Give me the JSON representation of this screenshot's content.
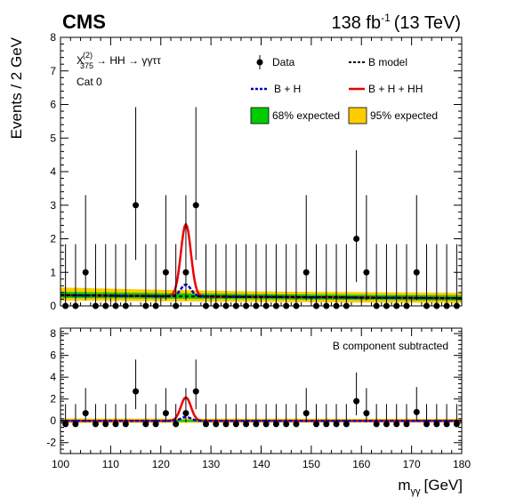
{
  "header": {
    "experiment": "CMS",
    "luminosity": "138 fb",
    "lumi_exponent": "-1",
    "energy": "(13 TeV)"
  },
  "annotations": {
    "process_main": "X",
    "process_sup": "(2)",
    "process_sub": "375",
    "process_rest": "→ HH → γγττ",
    "category": "Cat 0",
    "subtracted_label": "B component subtracted"
  },
  "legend": {
    "data": "Data",
    "b_model": "B model",
    "b_plus_h": "B + H",
    "b_plus_h_plus_hh": "B + H + HH",
    "band68": "68% expected",
    "band95": "95% expected"
  },
  "colors": {
    "data": "#000000",
    "b_model": "#000000",
    "b_plus_h": "#0000cc",
    "b_plus_h_plus_hh": "#ee0000",
    "band68": "#00cc00",
    "band95": "#ffcc00"
  },
  "chart_data": [
    {
      "type": "scatter",
      "panel": "main",
      "ylabel": "Events / 2 GeV",
      "xlim": [
        100,
        180
      ],
      "ylim": [
        0,
        8
      ],
      "x_ticks": [
        100,
        110,
        120,
        130,
        140,
        150,
        160,
        170,
        180
      ],
      "y_ticks": [
        0,
        1,
        2,
        3,
        4,
        5,
        6,
        7,
        8
      ],
      "data_points": [
        {
          "x": 101,
          "y": 0
        },
        {
          "x": 103,
          "y": 0
        },
        {
          "x": 105,
          "y": 1
        },
        {
          "x": 107,
          "y": 0
        },
        {
          "x": 109,
          "y": 0
        },
        {
          "x": 111,
          "y": 0
        },
        {
          "x": 113,
          "y": 0
        },
        {
          "x": 115,
          "y": 3
        },
        {
          "x": 117,
          "y": 0
        },
        {
          "x": 119,
          "y": 0
        },
        {
          "x": 121,
          "y": 1
        },
        {
          "x": 123,
          "y": 0
        },
        {
          "x": 125,
          "y": 1
        },
        {
          "x": 127,
          "y": 3
        },
        {
          "x": 129,
          "y": 0
        },
        {
          "x": 131,
          "y": 0
        },
        {
          "x": 133,
          "y": 0
        },
        {
          "x": 135,
          "y": 0
        },
        {
          "x": 137,
          "y": 0
        },
        {
          "x": 139,
          "y": 0
        },
        {
          "x": 141,
          "y": 0
        },
        {
          "x": 143,
          "y": 0
        },
        {
          "x": 145,
          "y": 0
        },
        {
          "x": 147,
          "y": 0
        },
        {
          "x": 149,
          "y": 1
        },
        {
          "x": 151,
          "y": 0
        },
        {
          "x": 153,
          "y": 0
        },
        {
          "x": 155,
          "y": 0
        },
        {
          "x": 157,
          "y": 0
        },
        {
          "x": 159,
          "y": 2
        },
        {
          "x": 161,
          "y": 1
        },
        {
          "x": 163,
          "y": 0
        },
        {
          "x": 165,
          "y": 0
        },
        {
          "x": 167,
          "y": 0
        },
        {
          "x": 169,
          "y": 0
        },
        {
          "x": 171,
          "y": 1
        },
        {
          "x": 173,
          "y": 0
        },
        {
          "x": 175,
          "y": 0
        },
        {
          "x": 177,
          "y": 0
        },
        {
          "x": 179,
          "y": 0
        }
      ],
      "b_model": {
        "x": [
          100,
          120,
          140,
          160,
          180
        ],
        "y": [
          0.32,
          0.29,
          0.27,
          0.25,
          0.23
        ]
      },
      "band68": {
        "x": [
          100,
          120,
          140,
          160,
          180
        ],
        "lo": [
          0.24,
          0.22,
          0.2,
          0.18,
          0.16
        ],
        "hi": [
          0.42,
          0.38,
          0.35,
          0.33,
          0.31
        ]
      },
      "band95": {
        "x": [
          100,
          120,
          140,
          160,
          180
        ],
        "lo": [
          0.16,
          0.14,
          0.12,
          0.1,
          0.09
        ],
        "hi": [
          0.55,
          0.48,
          0.43,
          0.41,
          0.39
        ]
      },
      "higgs_peak": {
        "mass": 125,
        "width": 1.0,
        "h_amplitude": 0.35,
        "hh_amplitude": 1.8
      }
    },
    {
      "type": "scatter",
      "panel": "ratio",
      "xlabel": "m_γγ [GeV]",
      "xlim": [
        100,
        180
      ],
      "ylim": [
        -3,
        8.5
      ],
      "x_ticks": [
        100,
        110,
        120,
        130,
        140,
        150,
        160,
        170,
        180
      ],
      "y_ticks": [
        -2,
        0,
        2,
        4,
        6,
        8
      ],
      "data_points": [
        {
          "x": 101,
          "y": -0.3
        },
        {
          "x": 103,
          "y": -0.3
        },
        {
          "x": 105,
          "y": 0.7
        },
        {
          "x": 107,
          "y": -0.3
        },
        {
          "x": 109,
          "y": -0.3
        },
        {
          "x": 111,
          "y": -0.3
        },
        {
          "x": 113,
          "y": -0.3
        },
        {
          "x": 115,
          "y": 2.7
        },
        {
          "x": 117,
          "y": -0.3
        },
        {
          "x": 119,
          "y": -0.3
        },
        {
          "x": 121,
          "y": 0.7
        },
        {
          "x": 123,
          "y": -0.3
        },
        {
          "x": 125,
          "y": 0.7
        },
        {
          "x": 127,
          "y": 2.7
        },
        {
          "x": 129,
          "y": -0.3
        },
        {
          "x": 131,
          "y": -0.3
        },
        {
          "x": 133,
          "y": -0.3
        },
        {
          "x": 135,
          "y": -0.3
        },
        {
          "x": 137,
          "y": -0.3
        },
        {
          "x": 139,
          "y": -0.3
        },
        {
          "x": 141,
          "y": -0.3
        },
        {
          "x": 143,
          "y": -0.3
        },
        {
          "x": 145,
          "y": -0.3
        },
        {
          "x": 147,
          "y": -0.3
        },
        {
          "x": 149,
          "y": 0.7
        },
        {
          "x": 151,
          "y": -0.3
        },
        {
          "x": 153,
          "y": -0.3
        },
        {
          "x": 155,
          "y": -0.3
        },
        {
          "x": 157,
          "y": -0.3
        },
        {
          "x": 159,
          "y": 1.8
        },
        {
          "x": 161,
          "y": 0.7
        },
        {
          "x": 163,
          "y": -0.3
        },
        {
          "x": 165,
          "y": -0.3
        },
        {
          "x": 167,
          "y": -0.3
        },
        {
          "x": 169,
          "y": -0.3
        },
        {
          "x": 171,
          "y": 0.8
        },
        {
          "x": 173,
          "y": -0.3
        },
        {
          "x": 175,
          "y": -0.3
        },
        {
          "x": 177,
          "y": -0.3
        },
        {
          "x": 179,
          "y": -0.3
        }
      ],
      "band68": {
        "x": [
          100,
          180
        ],
        "lo": [
          -0.1,
          -0.08
        ],
        "hi": [
          0.1,
          0.08
        ]
      },
      "band95": {
        "x": [
          100,
          180
        ],
        "lo": [
          -0.2,
          -0.16
        ],
        "hi": [
          0.22,
          0.18
        ]
      },
      "higgs_peak": {
        "mass": 125,
        "width": 1.0,
        "h_amplitude": 0.35,
        "hh_amplitude": 1.8
      }
    }
  ]
}
